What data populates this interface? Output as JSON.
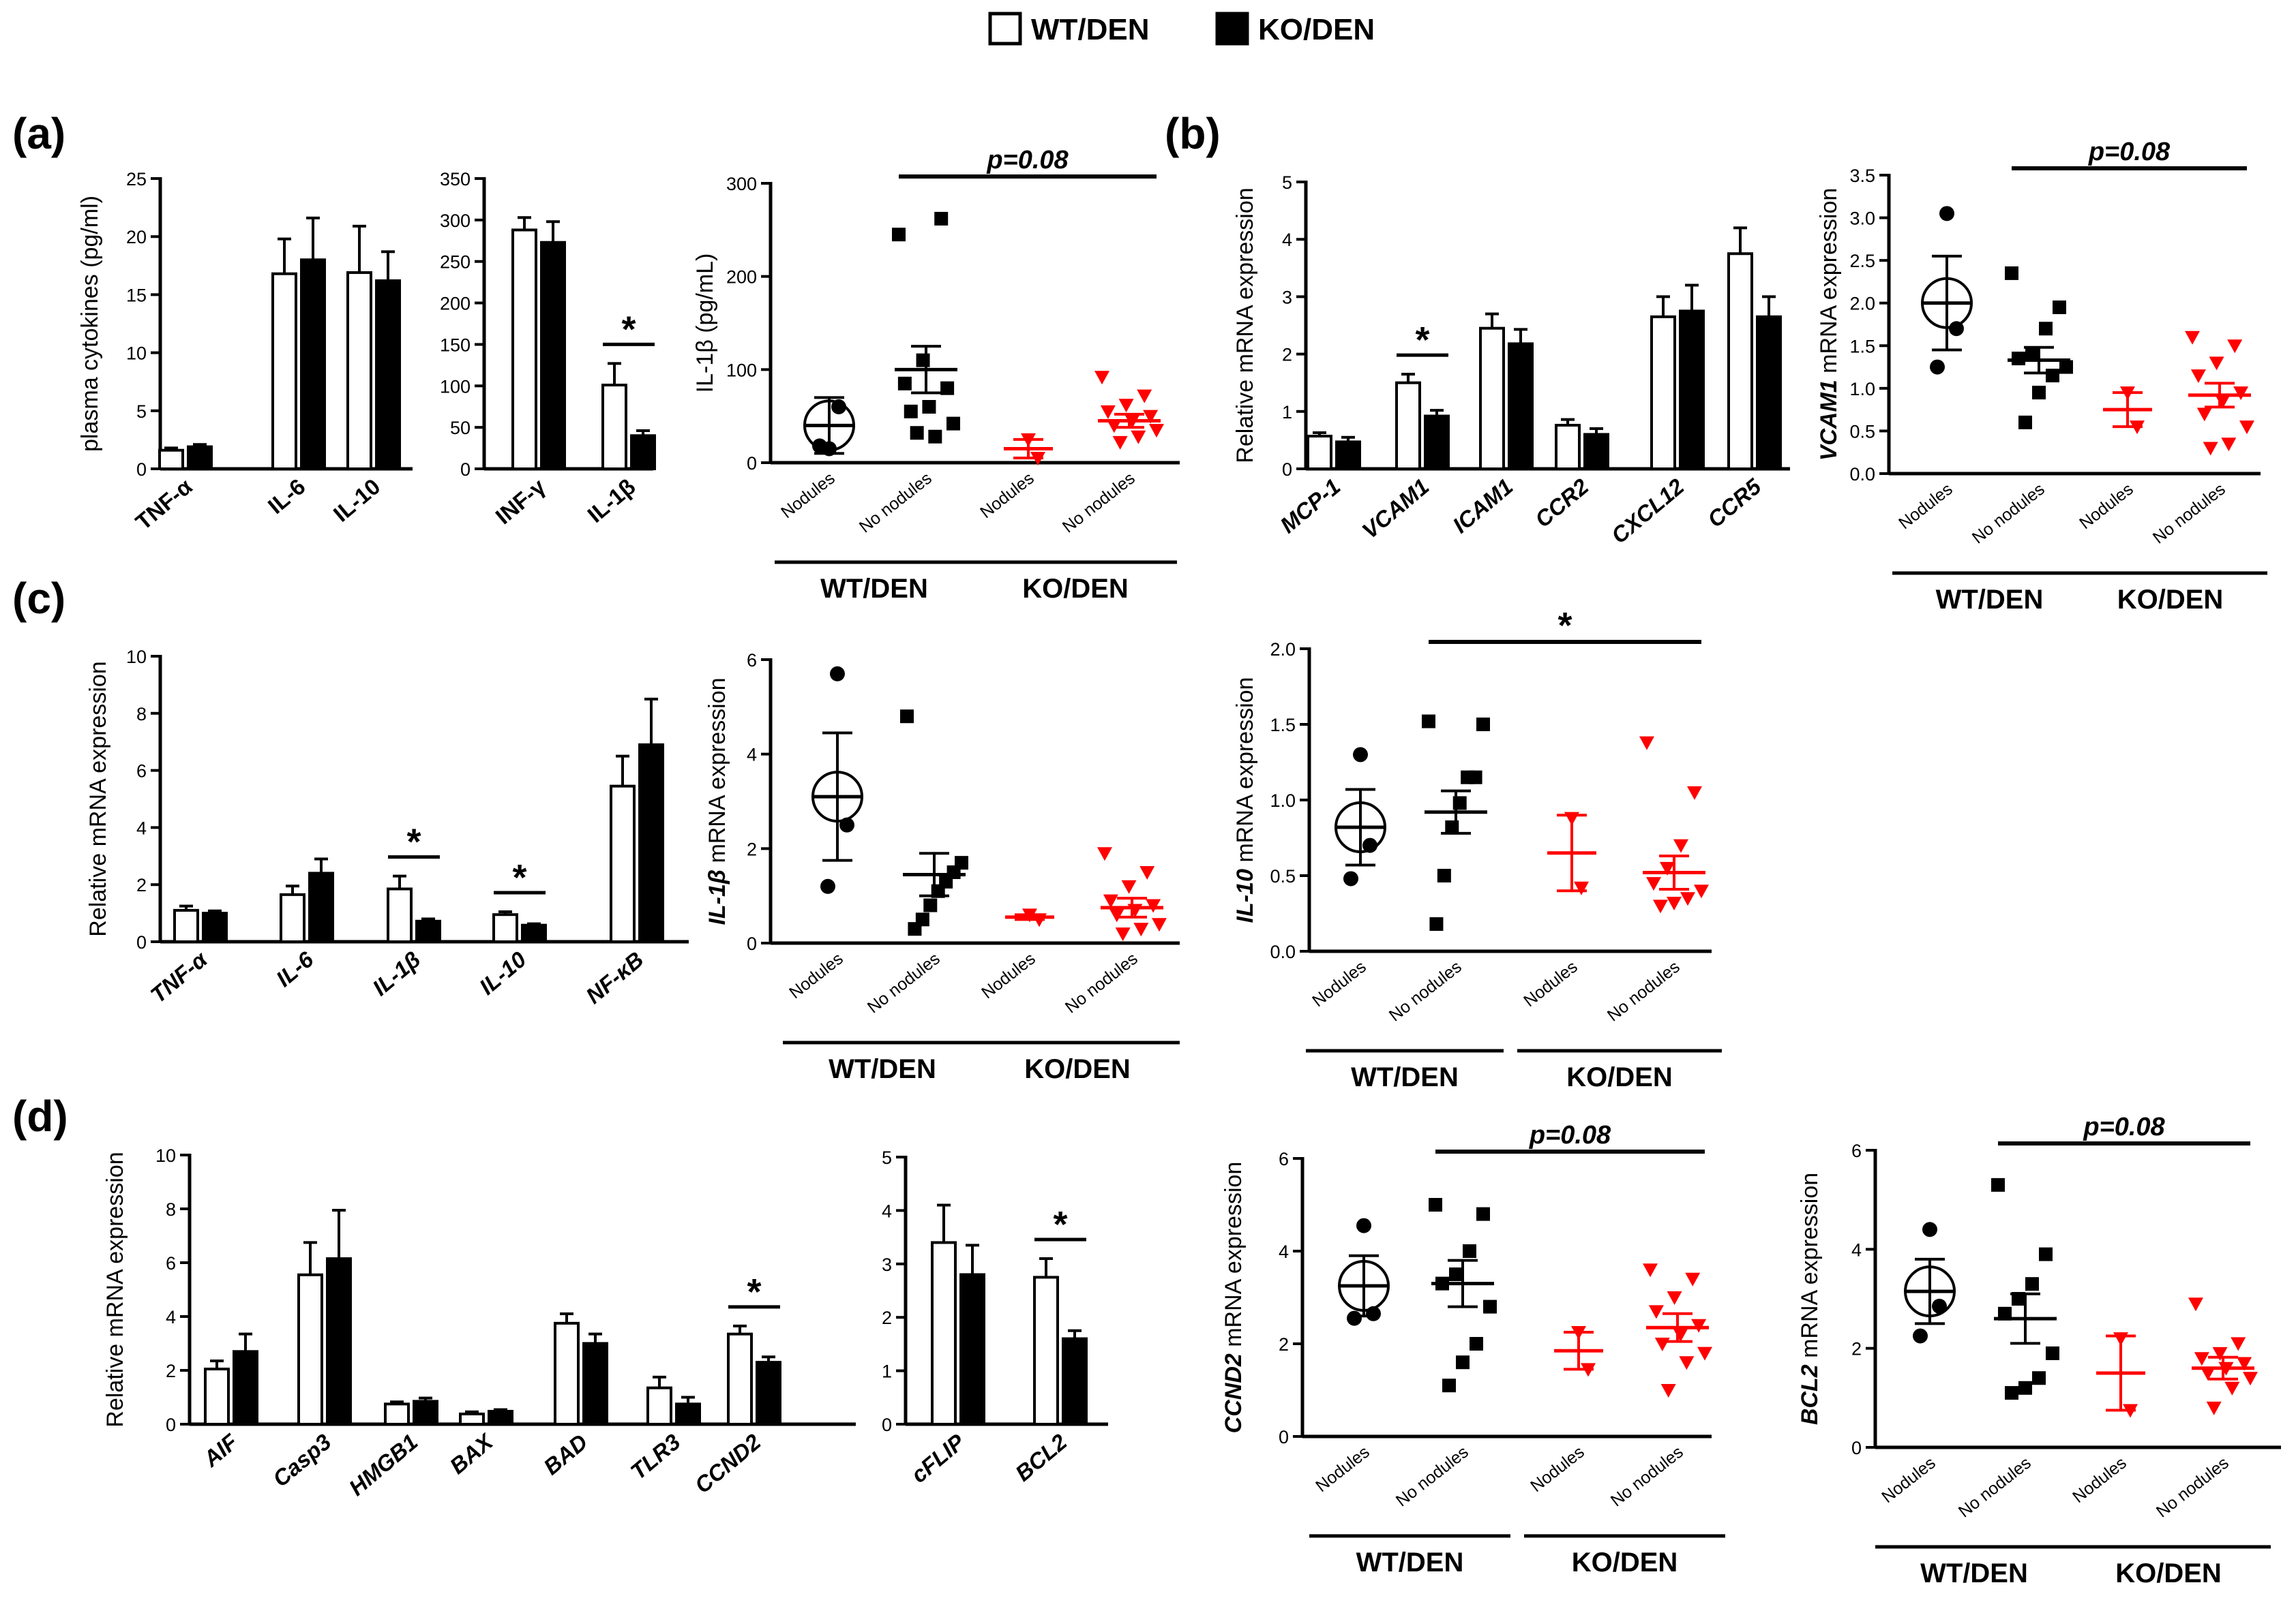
{
  "legend": [
    {
      "name": "WT/DEN",
      "fill": "#ffffff"
    },
    {
      "name": "KO/DEN",
      "fill": "#000000"
    }
  ],
  "colors": {
    "wt": "#ffffff",
    "ko": "#000000",
    "ko_scatter": "#ff0000",
    "axis": "#000000"
  },
  "panel_labels": [
    "(a)",
    "(b)",
    "(c)",
    "(d)"
  ],
  "scatter_groups": [
    "Nodules",
    "No nodules",
    "Nodules",
    "No nodules"
  ],
  "scatter_group_labels": [
    "WT/DEN",
    "KO/DEN"
  ],
  "chart_data": [
    {
      "id": "a1",
      "type": "bar",
      "ylabel": "plasma cytokines (pg/ml)",
      "ylim": [
        0,
        25
      ],
      "yticks": [
        0,
        5,
        10,
        15,
        20,
        25
      ],
      "yticklabels": [
        "0",
        "5",
        "10",
        "15",
        "20",
        "25"
      ],
      "categories": [
        "TNF-α",
        "IL-6",
        "IL-10"
      ],
      "italic": false,
      "series": [
        {
          "name": "WT/DEN",
          "values": [
            1.6,
            16.8,
            16.9
          ],
          "errors": [
            0.2,
            3.0,
            4.0
          ]
        },
        {
          "name": "KO/DEN",
          "values": [
            1.9,
            18.0,
            16.2
          ],
          "errors": [
            0.2,
            3.6,
            2.5
          ]
        }
      ],
      "annotations": []
    },
    {
      "id": "a2",
      "type": "bar",
      "ylabel": "",
      "ylim": [
        0,
        350
      ],
      "yticks": [
        0,
        50,
        100,
        150,
        200,
        250,
        300,
        350
      ],
      "yticklabels": [
        "0",
        "50",
        "100",
        "150",
        "200",
        "250",
        "300",
        "350"
      ],
      "categories": [
        "INF-γ",
        "IL-1β"
      ],
      "italic": false,
      "series": [
        {
          "name": "WT/DEN",
          "values": [
            288,
            101
          ],
          "errors": [
            15,
            26
          ]
        },
        {
          "name": "KO/DEN",
          "values": [
            273,
            40
          ],
          "errors": [
            25,
            6
          ]
        }
      ],
      "annotations": [
        {
          "category": 1,
          "text": "*"
        }
      ]
    },
    {
      "id": "a3",
      "type": "scatter",
      "ylabel": "IL-1β (pg/mL)",
      "ylim": [
        0,
        300
      ],
      "yticks": [
        0,
        100,
        200,
        300
      ],
      "yticklabels": [
        "0",
        "100",
        "200",
        "300"
      ],
      "groups": [
        {
          "name": "Nodules",
          "values": [
            15,
            60,
            18
          ],
          "mean": 40,
          "sem": 30
        },
        {
          "name": "No nodules",
          "values": [
            245,
            262,
            110,
            85,
            80,
            60,
            55,
            42,
            28,
            32
          ],
          "mean": 100,
          "sem": 25
        },
        {
          "name": "Nodules",
          "values": [
            25,
            5
          ],
          "mean": 15,
          "sem": 10
        },
        {
          "name": "No nodules",
          "values": [
            92,
            72,
            62,
            55,
            50,
            45,
            40,
            35,
            28,
            22
          ],
          "mean": 45,
          "sem": 7
        }
      ],
      "circled": 0,
      "significance": {
        "from": 1,
        "to": 3,
        "text": "p=0.08"
      }
    },
    {
      "id": "b1",
      "type": "bar",
      "ylabel": "Relative mRNA expression",
      "ylim": [
        0,
        5
      ],
      "yticks": [
        0,
        1,
        2,
        3,
        4,
        5
      ],
      "yticklabels": [
        "0",
        "1",
        "2",
        "3",
        "4",
        "5"
      ],
      "categories": [
        "MCP-1",
        "VCAM1",
        "ICAM1",
        "CCR2",
        "CXCL12",
        "CCR5"
      ],
      "italic": true,
      "series": [
        {
          "name": "WT/DEN",
          "values": [
            0.57,
            1.5,
            2.45,
            0.76,
            2.65,
            3.75
          ],
          "errors": [
            0.06,
            0.15,
            0.25,
            0.1,
            0.35,
            0.45
          ]
        },
        {
          "name": "KO/DEN",
          "values": [
            0.47,
            0.92,
            2.18,
            0.6,
            2.75,
            2.65
          ],
          "errors": [
            0.08,
            0.1,
            0.25,
            0.1,
            0.45,
            0.35
          ]
        }
      ],
      "annotations": [
        {
          "category": 1,
          "text": "*"
        }
      ]
    },
    {
      "id": "b2",
      "type": "scatter",
      "ylabel": "VCAM1 mRNA expression",
      "ylabel_italic_prefix": "VCAM1",
      "ylim": [
        0,
        3.5
      ],
      "yticks": [
        0,
        0.5,
        1.0,
        1.5,
        2.0,
        2.5,
        3.0,
        3.5
      ],
      "yticklabels": [
        "0.0",
        "0.5",
        "1.0",
        "1.5",
        "2.0",
        "2.5",
        "3.0",
        "3.5"
      ],
      "groups": [
        {
          "name": "Nodules",
          "values": [
            3.05,
            1.7,
            1.25
          ],
          "mean": 2.0,
          "sem": 0.55
        },
        {
          "name": "No nodules",
          "values": [
            2.35,
            1.95,
            1.7,
            1.4,
            1.35,
            1.25,
            1.15,
            0.95,
            0.6
          ],
          "mean": 1.33,
          "sem": 0.15
        },
        {
          "name": "Nodules",
          "values": [
            0.95,
            0.55
          ],
          "mean": 0.75,
          "sem": 0.2
        },
        {
          "name": "No nodules",
          "values": [
            1.6,
            1.5,
            1.3,
            1.15,
            0.95,
            0.85,
            0.7,
            0.55,
            0.35,
            0.3
          ],
          "mean": 0.92,
          "sem": 0.14
        }
      ],
      "circled": 0,
      "significance": {
        "from": 1,
        "to": 3,
        "text": "p=0.08"
      }
    },
    {
      "id": "c1",
      "type": "bar",
      "ylabel": "Relative mRNA expression",
      "ylim": [
        0,
        10
      ],
      "yticks": [
        0,
        2,
        4,
        6,
        8,
        10
      ],
      "yticklabels": [
        "0",
        "2",
        "4",
        "6",
        "8",
        "10"
      ],
      "categories": [
        "TNF-α",
        "IL-6",
        "IL-1β",
        "IL-10",
        "NF-κB"
      ],
      "italic": true,
      "series": [
        {
          "name": "WT/DEN",
          "values": [
            1.1,
            1.65,
            1.85,
            0.95,
            5.45
          ],
          "errors": [
            0.15,
            0.3,
            0.45,
            0.1,
            1.05
          ]
        },
        {
          "name": "KO/DEN",
          "values": [
            1.0,
            2.4,
            0.72,
            0.58,
            6.9
          ],
          "errors": [
            0.08,
            0.5,
            0.08,
            0.05,
            1.6
          ]
        }
      ],
      "annotations": [
        {
          "category": 2,
          "text": "*"
        },
        {
          "category": 3,
          "text": "*"
        }
      ]
    },
    {
      "id": "c2",
      "type": "scatter",
      "ylabel": "IL-1β mRNA expression",
      "ylabel_italic_prefix": "IL-1β",
      "ylim": [
        0,
        6
      ],
      "yticks": [
        0,
        2,
        4,
        6
      ],
      "yticklabels": [
        "0",
        "2",
        "4",
        "6"
      ],
      "groups": [
        {
          "name": "Nodules",
          "values": [
            5.7,
            2.5,
            1.2
          ],
          "mean": 3.1,
          "sem": 1.35
        },
        {
          "name": "No nodules",
          "values": [
            4.8,
            1.7,
            1.5,
            1.3,
            1.1,
            0.8,
            0.5,
            0.3
          ],
          "mean": 1.45,
          "sem": 0.45
        },
        {
          "name": "Nodules",
          "values": [
            0.6,
            0.5
          ],
          "mean": 0.55,
          "sem": 0.05
        },
        {
          "name": "No nodules",
          "values": [
            1.9,
            1.5,
            1.2,
            0.9,
            0.8,
            0.7,
            0.6,
            0.4,
            0.3,
            0.2
          ],
          "mean": 0.75,
          "sem": 0.2
        }
      ],
      "circled": 0,
      "significance": null
    },
    {
      "id": "c3",
      "type": "scatter",
      "ylabel": "IL-10 mRNA expression",
      "ylabel_italic_prefix": "IL-10",
      "ylim": [
        0,
        2.0
      ],
      "yticks": [
        0,
        0.5,
        1.0,
        1.5,
        2.0
      ],
      "yticklabels": [
        "0.0",
        "0.5",
        "1.0",
        "1.5",
        "2.0"
      ],
      "groups": [
        {
          "name": "Nodules",
          "values": [
            1.3,
            0.7,
            0.48
          ],
          "mean": 0.82,
          "sem": 0.25
        },
        {
          "name": "No nodules",
          "values": [
            1.52,
            1.5,
            1.15,
            1.15,
            0.98,
            0.82,
            0.5,
            0.18
          ],
          "mean": 0.92,
          "sem": 0.14
        },
        {
          "name": "Nodules",
          "values": [
            0.88,
            0.42
          ],
          "mean": 0.65,
          "sem": 0.25
        },
        {
          "name": "No nodules",
          "values": [
            1.38,
            1.05,
            0.7,
            0.55,
            0.45,
            0.4,
            0.35,
            0.32,
            0.3
          ],
          "mean": 0.52,
          "sem": 0.11
        }
      ],
      "circled": 0,
      "significance": {
        "from": 1,
        "to": 3,
        "text": "*"
      }
    },
    {
      "id": "d1",
      "type": "bar",
      "ylabel": "Relative mRNA expression",
      "ylim": [
        0,
        10
      ],
      "yticks": [
        0,
        2,
        4,
        6,
        8,
        10
      ],
      "yticklabels": [
        "0",
        "2",
        "4",
        "6",
        "8",
        "10"
      ],
      "categories": [
        "AIF",
        "Casp3",
        "HMGB1",
        "BAX",
        "BAD",
        "TLR3",
        "CCND2"
      ],
      "italic": true,
      "series": [
        {
          "name": "WT/DEN",
          "values": [
            2.05,
            5.55,
            0.75,
            0.38,
            3.75,
            1.35,
            3.35
          ],
          "errors": [
            0.3,
            1.2,
            0.08,
            0.08,
            0.35,
            0.4,
            0.3
          ]
        },
        {
          "name": "KO/DEN",
          "values": [
            2.7,
            6.15,
            0.85,
            0.48,
            3.0,
            0.75,
            2.3
          ],
          "errors": [
            0.65,
            1.8,
            0.12,
            0.06,
            0.35,
            0.25,
            0.2
          ]
        }
      ],
      "annotations": [
        {
          "category": 6,
          "text": "*"
        }
      ]
    },
    {
      "id": "d2",
      "type": "bar",
      "ylabel": "",
      "ylim": [
        0,
        5
      ],
      "yticks": [
        0,
        1,
        2,
        3,
        4,
        5
      ],
      "yticklabels": [
        "0",
        "1",
        "2",
        "3",
        "4",
        "5"
      ],
      "categories": [
        "cFLIP",
        "BCL2"
      ],
      "italic": true,
      "series": [
        {
          "name": "WT/DEN",
          "values": [
            3.4,
            2.75
          ],
          "errors": [
            0.7,
            0.35
          ]
        },
        {
          "name": "KO/DEN",
          "values": [
            2.8,
            1.6
          ],
          "errors": [
            0.55,
            0.15
          ]
        }
      ],
      "annotations": [
        {
          "category": 1,
          "text": "*"
        }
      ]
    },
    {
      "id": "d3",
      "type": "scatter",
      "ylabel": "CCND2 mRNA expression",
      "ylabel_italic_prefix": "CCND2",
      "ylim": [
        0,
        6
      ],
      "yticks": [
        0,
        2,
        4,
        6
      ],
      "yticklabels": [
        "0",
        "2",
        "4",
        "6"
      ],
      "groups": [
        {
          "name": "Nodules",
          "values": [
            4.55,
            2.65,
            2.55
          ],
          "mean": 3.25,
          "sem": 0.65
        },
        {
          "name": "No nodules",
          "values": [
            5.0,
            4.8,
            4.0,
            3.5,
            3.3,
            2.8,
            2.0,
            1.6,
            1.1
          ],
          "mean": 3.3,
          "sem": 0.5
        },
        {
          "name": "Nodules",
          "values": [
            2.25,
            1.45
          ],
          "mean": 1.85,
          "sem": 0.4
        },
        {
          "name": "No nodules",
          "values": [
            3.6,
            3.4,
            3.0,
            2.7,
            2.4,
            2.2,
            2.0,
            1.8,
            1.6,
            1.0
          ],
          "mean": 2.35,
          "sem": 0.3
        }
      ],
      "circled": 0,
      "significance": {
        "from": 1,
        "to": 3,
        "text": "p=0.08"
      }
    },
    {
      "id": "d4",
      "type": "scatter",
      "ylabel": "BCL2 mRNA expression",
      "ylabel_italic_prefix": "BCL2",
      "ylim": [
        0,
        6
      ],
      "yticks": [
        0,
        2,
        4,
        6
      ],
      "yticklabels": [
        "0",
        "2",
        "4",
        "6"
      ],
      "groups": [
        {
          "name": "Nodules",
          "values": [
            4.4,
            2.85,
            2.25
          ],
          "mean": 3.15,
          "sem": 0.65
        },
        {
          "name": "No nodules",
          "values": [
            5.3,
            3.9,
            3.3,
            3.0,
            2.7,
            1.9,
            1.4,
            1.2,
            1.1
          ],
          "mean": 2.6,
          "sem": 0.5
        },
        {
          "name": "Nodules",
          "values": [
            2.2,
            0.75
          ],
          "mean": 1.5,
          "sem": 0.75
        },
        {
          "name": "No nodules",
          "values": [
            2.9,
            2.1,
            1.9,
            1.8,
            1.7,
            1.6,
            1.5,
            1.4,
            1.2,
            0.8
          ],
          "mean": 1.6,
          "sem": 0.22
        }
      ],
      "circled": 0,
      "significance": {
        "from": 1,
        "to": 3,
        "text": "p=0.08"
      }
    }
  ]
}
